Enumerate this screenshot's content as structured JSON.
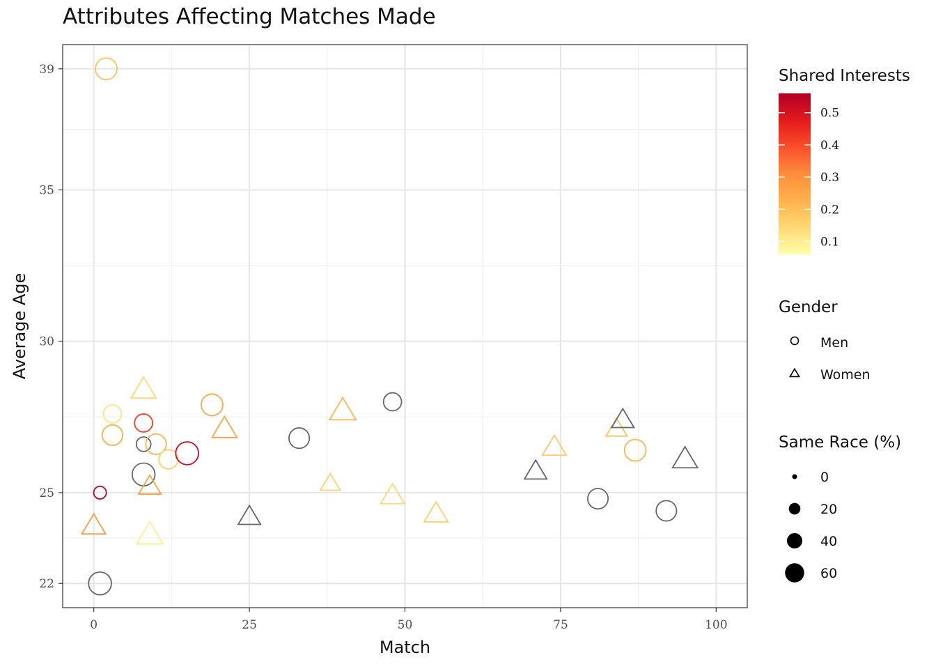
{
  "chart_data": {
    "type": "scatter",
    "title": "Attributes Affecting Matches Made",
    "xlabel": "Match",
    "ylabel": "Average Age",
    "xlim": [
      -5,
      105
    ],
    "ylim": [
      21.2,
      39.8
    ],
    "xticks": [
      0,
      25,
      50,
      75,
      100
    ],
    "yticks": [
      22,
      25,
      30,
      35,
      39
    ],
    "yminor": [
      23.5,
      27.5,
      32.5,
      37
    ],
    "grid": true,
    "na_color": "#666666",
    "color_scale": {
      "name": "Shared Interests",
      "range": [
        0.06,
        0.56
      ],
      "ticks": [
        0.1,
        0.2,
        0.3,
        0.4,
        0.5
      ],
      "stops": [
        "#FFFFA6",
        "#FED976",
        "#FEB24C",
        "#FD8D3C",
        "#FC4E2A",
        "#E31A1C",
        "#B10026"
      ]
    },
    "shape_legend": {
      "name": "Gender",
      "items": [
        {
          "label": "Men",
          "shape": "circle"
        },
        {
          "label": "Women",
          "shape": "triangle"
        }
      ]
    },
    "size_legend": {
      "name": "Same Race (%)",
      "items": [
        {
          "label": "0",
          "value": 0
        },
        {
          "label": "20",
          "value": 20
        },
        {
          "label": "40",
          "value": 40
        },
        {
          "label": "60",
          "value": 60
        }
      ]
    },
    "points": [
      {
        "x": 2,
        "y": 39,
        "gender": "Men",
        "shared": 0.2,
        "same_race": 50
      },
      {
        "x": 3,
        "y": 27.6,
        "gender": "Men",
        "shared": 0.12,
        "same_race": 35
      },
      {
        "x": 3,
        "y": 26.9,
        "gender": "Men",
        "shared": 0.24,
        "same_race": 45
      },
      {
        "x": 8,
        "y": 27.3,
        "gender": "Men",
        "shared": 0.42,
        "same_race": 35
      },
      {
        "x": 8,
        "y": 26.6,
        "gender": "Men",
        "shared": null,
        "same_race": 20
      },
      {
        "x": 10,
        "y": 26.6,
        "gender": "Men",
        "shared": 0.22,
        "same_race": 45
      },
      {
        "x": 12,
        "y": 26.1,
        "gender": "Men",
        "shared": 0.17,
        "same_race": 40
      },
      {
        "x": 15,
        "y": 26.3,
        "gender": "Men",
        "shared": 0.52,
        "same_race": 55
      },
      {
        "x": 8,
        "y": 25.6,
        "gender": "Men",
        "shared": null,
        "same_race": 55
      },
      {
        "x": 1,
        "y": 25,
        "gender": "Men",
        "shared": 0.55,
        "same_race": 12
      },
      {
        "x": 1,
        "y": 22,
        "gender": "Men",
        "shared": null,
        "same_race": 55
      },
      {
        "x": 19,
        "y": 27.9,
        "gender": "Men",
        "shared": 0.25,
        "same_race": 50
      },
      {
        "x": 33,
        "y": 26.8,
        "gender": "Men",
        "shared": null,
        "same_race": 45
      },
      {
        "x": 48,
        "y": 28,
        "gender": "Men",
        "shared": null,
        "same_race": 35
      },
      {
        "x": 81,
        "y": 24.8,
        "gender": "Men",
        "shared": null,
        "same_race": 45
      },
      {
        "x": 87,
        "y": 26.4,
        "gender": "Men",
        "shared": 0.22,
        "same_race": 50
      },
      {
        "x": 92,
        "y": 24.4,
        "gender": "Men",
        "shared": null,
        "same_race": 45
      },
      {
        "x": 8,
        "y": 28.4,
        "gender": "Women",
        "shared": 0.15,
        "same_race": 55
      },
      {
        "x": 9,
        "y": 25.2,
        "gender": "Women",
        "shared": 0.27,
        "same_race": 45
      },
      {
        "x": 9,
        "y": 23.6,
        "gender": "Women",
        "shared": 0.1,
        "same_race": 60
      },
      {
        "x": 0,
        "y": 23.9,
        "gender": "Women",
        "shared": 0.28,
        "same_race": 50
      },
      {
        "x": 21,
        "y": 27.1,
        "gender": "Women",
        "shared": 0.26,
        "same_race": 55
      },
      {
        "x": 25,
        "y": 24.2,
        "gender": "Women",
        "shared": null,
        "same_race": 45
      },
      {
        "x": 38,
        "y": 25.3,
        "gender": "Women",
        "shared": 0.16,
        "same_race": 35
      },
      {
        "x": 40,
        "y": 27.7,
        "gender": "Women",
        "shared": 0.22,
        "same_race": 60
      },
      {
        "x": 48,
        "y": 24.9,
        "gender": "Women",
        "shared": 0.15,
        "same_race": 50
      },
      {
        "x": 55,
        "y": 24.3,
        "gender": "Women",
        "shared": 0.17,
        "same_race": 50
      },
      {
        "x": 71,
        "y": 25.7,
        "gender": "Women",
        "shared": null,
        "same_race": 45
      },
      {
        "x": 74,
        "y": 26.5,
        "gender": "Women",
        "shared": 0.18,
        "same_race": 50
      },
      {
        "x": 84,
        "y": 27.1,
        "gender": "Women",
        "shared": 0.19,
        "same_race": 40
      },
      {
        "x": 85,
        "y": 27.4,
        "gender": "Women",
        "shared": null,
        "same_race": 45
      },
      {
        "x": 95,
        "y": 26.1,
        "gender": "Women",
        "shared": null,
        "same_race": 55
      }
    ]
  }
}
